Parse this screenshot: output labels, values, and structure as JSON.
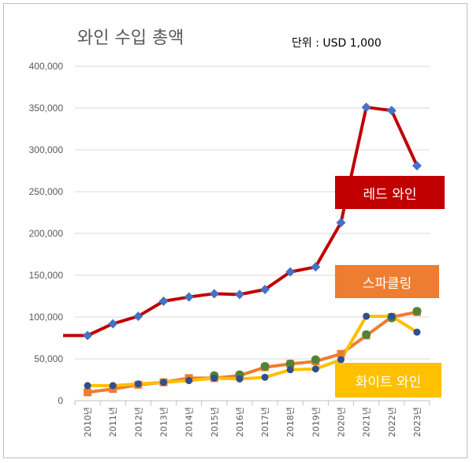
{
  "chart_data": {
    "type": "line",
    "title": "와인 수입 총액",
    "unit_label": "단위 : USD 1,000",
    "categories": [
      "2010년",
      "2011년",
      "2012년",
      "2013년",
      "2014년",
      "2015년",
      "2016년",
      "2017년",
      "2018년",
      "2019년",
      "2020년",
      "2021년",
      "2022년",
      "2023년"
    ],
    "ylim": [
      0,
      400000
    ],
    "yticks": [
      0,
      50000,
      100000,
      150000,
      200000,
      250000,
      300000,
      350000,
      400000
    ],
    "ytick_labels": [
      "0",
      "50,000",
      "100,000",
      "150,000",
      "200,000",
      "250,000",
      "300,000",
      "350,000",
      "400,000"
    ],
    "grid": true,
    "series": [
      {
        "name": "레드 와인",
        "color": "#c00000",
        "marker_color": "#4472c4",
        "values": [
          78000,
          92000,
          101000,
          119000,
          124000,
          128000,
          127000,
          133000,
          154000,
          160000,
          213000,
          351000,
          347000,
          281000
        ]
      },
      {
        "name": "스파클링",
        "color": "#ed7d31",
        "marker_color": "#ed7d31",
        "values": [
          10000,
          14000,
          19000,
          22000,
          27000,
          27000,
          30000,
          40000,
          44000,
          47000,
          56000,
          78000,
          100000,
          106000
        ]
      },
      {
        "name": "화이트 와인",
        "color": "#ffc000",
        "marker_color": "#2f4f8f",
        "extra_marker_color": "#548235",
        "values": [
          18000,
          18000,
          20000,
          22000,
          24000,
          27000,
          26000,
          28000,
          37000,
          38000,
          49000,
          101000,
          101000,
          82000
        ]
      }
    ],
    "green_markers": [
      null,
      null,
      null,
      null,
      null,
      30000,
      31000,
      41000,
      44000,
      49000,
      null,
      79000,
      99000,
      107000
    ],
    "legend_placement": "inline-right"
  }
}
